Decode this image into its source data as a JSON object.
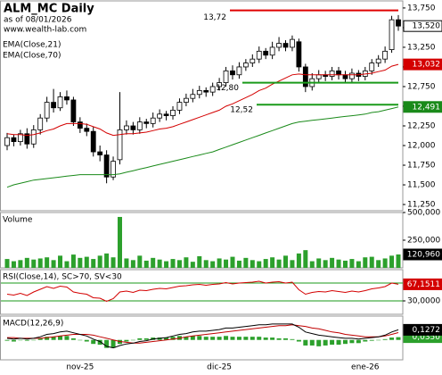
{
  "chart_data": {
    "type": "candlestick",
    "title": "ALM_MC Daily",
    "subtitle": "as of 08/01/2026",
    "source": "www.wealth-lab.com",
    "categories": [
      null,
      null,
      null,
      null,
      null,
      null,
      null,
      null,
      null,
      null,
      null,
      "nov-25",
      null,
      null,
      null,
      null,
      null,
      null,
      null,
      null,
      null,
      null,
      null,
      null,
      null,
      null,
      null,
      null,
      null,
      null,
      null,
      null,
      "dic-25",
      null,
      null,
      null,
      null,
      null,
      null,
      null,
      null,
      null,
      null,
      null,
      null,
      null,
      null,
      null,
      null,
      null,
      null,
      null,
      null,
      null,
      "ene-26",
      null,
      null,
      null,
      null,
      null
    ],
    "open": [
      12.0,
      12.1,
      12.05,
      12.15,
      12.02,
      12.2,
      12.35,
      12.55,
      12.48,
      12.62,
      12.58,
      12.3,
      12.22,
      12.18,
      11.92,
      11.88,
      11.6,
      11.82,
      12.2,
      12.25,
      12.2,
      12.3,
      12.28,
      12.35,
      12.4,
      12.38,
      12.45,
      12.55,
      12.6,
      12.65,
      12.7,
      12.68,
      12.75,
      12.8,
      12.95,
      12.9,
      13.0,
      13.05,
      13.1,
      13.2,
      13.15,
      13.25,
      13.3,
      13.25,
      13.32,
      13.0,
      12.75,
      12.85,
      12.9,
      12.88,
      12.95,
      12.9,
      12.85,
      12.92,
      12.88,
      12.95,
      13.05,
      13.1,
      13.22,
      13.6
    ],
    "high": [
      12.16,
      12.14,
      12.2,
      12.22,
      12.26,
      12.4,
      12.62,
      12.72,
      12.68,
      12.7,
      12.62,
      12.36,
      12.28,
      12.24,
      12.0,
      11.94,
      11.86,
      12.68,
      12.32,
      12.3,
      12.36,
      12.34,
      12.42,
      12.46,
      12.44,
      12.5,
      12.6,
      12.66,
      12.72,
      12.76,
      12.74,
      12.8,
      12.86,
      13.0,
      13.02,
      13.06,
      13.1,
      13.16,
      13.26,
      13.24,
      13.32,
      13.38,
      13.34,
      13.4,
      13.36,
      13.04,
      12.92,
      12.96,
      12.95,
      13.0,
      13.0,
      12.95,
      12.98,
      12.96,
      13.0,
      13.1,
      13.15,
      13.26,
      13.65,
      13.66
    ],
    "low": [
      11.94,
      11.99,
      12.0,
      11.96,
      11.97,
      12.14,
      12.3,
      12.42,
      12.44,
      12.52,
      12.25,
      12.16,
      12.12,
      11.86,
      11.8,
      11.52,
      11.56,
      11.76,
      12.14,
      12.14,
      12.15,
      12.22,
      12.23,
      12.3,
      12.32,
      12.33,
      12.4,
      12.5,
      12.55,
      12.6,
      12.62,
      12.63,
      12.7,
      12.75,
      12.84,
      12.85,
      12.95,
      13.0,
      13.05,
      13.1,
      13.1,
      13.2,
      13.2,
      13.2,
      12.94,
      12.68,
      12.7,
      12.8,
      12.82,
      12.83,
      12.84,
      12.8,
      12.8,
      12.82,
      12.83,
      12.9,
      13.0,
      13.05,
      13.18,
      13.46
    ],
    "close": [
      12.1,
      12.05,
      12.15,
      12.02,
      12.2,
      12.35,
      12.55,
      12.48,
      12.62,
      12.58,
      12.3,
      12.22,
      12.18,
      11.92,
      11.88,
      11.6,
      11.8,
      12.2,
      12.25,
      12.2,
      12.3,
      12.28,
      12.35,
      12.4,
      12.38,
      12.45,
      12.55,
      12.6,
      12.65,
      12.7,
      12.68,
      12.75,
      12.8,
      12.95,
      12.9,
      13.0,
      13.05,
      13.1,
      13.2,
      13.15,
      13.25,
      13.3,
      13.25,
      13.35,
      13.0,
      12.75,
      12.85,
      12.9,
      12.88,
      12.95,
      12.9,
      12.85,
      12.92,
      12.88,
      12.95,
      13.05,
      13.1,
      13.2,
      13.6,
      13.52
    ],
    "close_label": "13,520",
    "up_color": "#ffffff",
    "down_color": "#000000",
    "ylim": [
      11.171,
      13.84
    ],
    "yticks": [
      {
        "value": 13.75,
        "label": "13,750"
      },
      {
        "value": 13.5,
        "label": "13,500"
      },
      {
        "value": 13.25,
        "label": "13,250"
      },
      {
        "value": 13.0,
        "label": "13,000"
      },
      {
        "value": 12.75,
        "label": "12,750"
      },
      {
        "value": 12.5,
        "label": "12,500"
      },
      {
        "value": 12.25,
        "label": "12,250"
      },
      {
        "value": 12.0,
        "label": "12,000"
      },
      {
        "value": 11.75,
        "label": "11,750"
      },
      {
        "value": 11.5,
        "label": "11,500"
      },
      {
        "value": 11.25,
        "label": "11,250"
      }
    ],
    "series": [
      {
        "name": "EMA(Close,21)",
        "color": "#d40000",
        "last_label": "13,032",
        "values": [
          12.15,
          12.14,
          12.14,
          12.13,
          12.14,
          12.16,
          12.19,
          12.21,
          12.25,
          12.28,
          12.28,
          12.28,
          12.27,
          12.24,
          12.21,
          12.16,
          12.13,
          12.14,
          12.15,
          12.15,
          12.16,
          12.17,
          12.19,
          12.21,
          12.22,
          12.24,
          12.27,
          12.3,
          12.33,
          12.36,
          12.39,
          12.42,
          12.45,
          12.5,
          12.53,
          12.57,
          12.61,
          12.65,
          12.7,
          12.73,
          12.78,
          12.82,
          12.86,
          12.9,
          12.91,
          12.9,
          12.9,
          12.9,
          12.9,
          12.9,
          12.9,
          12.9,
          12.9,
          12.9,
          12.91,
          12.92,
          12.94,
          12.96,
          13.01,
          13.032
        ]
      },
      {
        "name": "EMA(Close,70)",
        "color": "#1a8a1a",
        "last_label": "12,491",
        "values": [
          11.47,
          11.5,
          11.52,
          11.54,
          11.56,
          11.57,
          11.58,
          11.59,
          11.6,
          11.61,
          11.62,
          11.63,
          11.63,
          11.63,
          11.63,
          11.63,
          11.63,
          11.64,
          11.66,
          11.68,
          11.7,
          11.72,
          11.74,
          11.76,
          11.78,
          11.8,
          11.82,
          11.84,
          11.86,
          11.88,
          11.9,
          11.92,
          11.95,
          11.98,
          12.01,
          12.04,
          12.07,
          12.1,
          12.13,
          12.16,
          12.19,
          12.22,
          12.25,
          12.28,
          12.3,
          12.31,
          12.32,
          12.33,
          12.34,
          12.35,
          12.36,
          12.37,
          12.38,
          12.39,
          12.4,
          12.42,
          12.43,
          12.45,
          12.47,
          12.491
        ]
      }
    ],
    "annotations": [
      {
        "label": "13,72",
        "value": 13.72,
        "color": "#e00000"
      },
      {
        "label": "12,80",
        "value": 12.8,
        "color": "#1a9a1a"
      },
      {
        "label": "12,52",
        "value": 12.52,
        "color": "#1a9a1a"
      }
    ],
    "panels": [
      {
        "type": "indicator",
        "title": "Volume",
        "ylim": [
          0,
          500
        ],
        "yticks": [
          {
            "value": 500,
            "label": "500,000"
          },
          {
            "value": 250,
            "label": "250,000"
          }
        ],
        "series": [
          {
            "type": "bar",
            "color": "#2ca02c",
            "last_label": "120,960",
            "label_color": "#000000",
            "values": [
              80,
              60,
              70,
              90,
              75,
              85,
              95,
              70,
              110,
              60,
              120,
              90,
              100,
              80,
              110,
              130,
              95,
              460,
              85,
              70,
              110,
              65,
              90,
              75,
              60,
              80,
              70,
              95,
              55,
              105,
              70,
              60,
              85,
              75,
              100,
              65,
              90,
              70,
              60,
              80,
              95,
              75,
              110,
              70,
              130,
              160,
              60,
              85,
              70,
              90,
              75,
              65,
              80,
              60,
              95,
              100,
              70,
              85,
              110,
              120.96
            ]
          }
        ]
      },
      {
        "type": "indicator",
        "title": "RSI(Close,14), SC>70, SV<30",
        "ylim": [
          0,
          100
        ],
        "yticks": [
          {
            "value": 30,
            "label": "30,0000"
          }
        ],
        "levels": [
          70,
          30
        ],
        "level_color": "#1a9a1a",
        "series": [
          {
            "type": "line",
            "color": "#d40000",
            "last_label": "67,1511",
            "values": [
              45,
              43,
              47,
              42,
              50,
              56,
              62,
              58,
              63,
              61,
              50,
              47,
              45,
              37,
              36,
              29,
              35,
              50,
              52,
              49,
              54,
              53,
              56,
              58,
              57,
              60,
              63,
              64,
              66,
              67,
              65,
              67,
              68,
              71,
              68,
              70,
              71,
              72,
              74,
              70,
              72,
              73,
              70,
              72,
              55,
              45,
              49,
              51,
              50,
              53,
              51,
              49,
              52,
              50,
              53,
              57,
              59,
              62,
              70,
              67.1511
            ]
          }
        ]
      },
      {
        "type": "indicator",
        "title": "MACD(12,26,9)",
        "ylim": [
          -0.25,
          0.3
        ],
        "series": [
          {
            "type": "bar",
            "color": "#2ca02c",
            "last_label": "0,0350",
            "values": [
              -0.01,
              -0.02,
              0.0,
              -0.01,
              0.0,
              0.02,
              0.04,
              0.04,
              0.05,
              0.05,
              0.02,
              0.0,
              -0.02,
              -0.05,
              -0.06,
              -0.1,
              -0.1,
              -0.05,
              -0.02,
              0.0,
              0.02,
              0.02,
              0.03,
              0.03,
              0.03,
              0.04,
              0.05,
              0.04,
              0.05,
              0.05,
              0.04,
              0.04,
              0.04,
              0.05,
              0.04,
              0.04,
              0.04,
              0.04,
              0.04,
              0.03,
              0.03,
              0.02,
              0.02,
              0.01,
              -0.02,
              -0.07,
              -0.07,
              -0.08,
              -0.07,
              -0.06,
              -0.06,
              -0.05,
              -0.04,
              -0.04,
              -0.02,
              -0.01,
              0.0,
              0.01,
              0.03,
              0.035
            ]
          },
          {
            "type": "line",
            "color": "#c00000",
            "values": [
              0.03,
              0.03,
              0.02,
              0.02,
              0.02,
              0.02,
              0.03,
              0.04,
              0.05,
              0.06,
              0.07,
              0.07,
              0.07,
              0.06,
              0.04,
              0.02,
              0.0,
              -0.02,
              -0.03,
              -0.04,
              -0.04,
              -0.03,
              -0.02,
              -0.01,
              0.0,
              0.01,
              0.02,
              0.04,
              0.05,
              0.06,
              0.07,
              0.08,
              0.09,
              0.1,
              0.11,
              0.12,
              0.13,
              0.14,
              0.15,
              0.16,
              0.17,
              0.18,
              0.18,
              0.19,
              0.18,
              0.17,
              0.15,
              0.14,
              0.12,
              0.1,
              0.09,
              0.07,
              0.06,
              0.05,
              0.04,
              0.04,
              0.04,
              0.05,
              0.07,
              0.0922
            ]
          },
          {
            "type": "line",
            "color": "#000000",
            "last_label": "0,1272",
            "values": [
              0.02,
              0.01,
              0.02,
              0.01,
              0.02,
              0.04,
              0.07,
              0.08,
              0.1,
              0.11,
              0.09,
              0.07,
              0.05,
              0.01,
              -0.02,
              -0.08,
              -0.1,
              -0.07,
              -0.05,
              -0.04,
              -0.02,
              -0.01,
              0.01,
              0.02,
              0.03,
              0.05,
              0.07,
              0.08,
              0.1,
              0.11,
              0.11,
              0.12,
              0.13,
              0.15,
              0.15,
              0.16,
              0.17,
              0.18,
              0.19,
              0.19,
              0.2,
              0.2,
              0.2,
              0.2,
              0.16,
              0.1,
              0.08,
              0.06,
              0.05,
              0.04,
              0.03,
              0.02,
              0.02,
              0.01,
              0.02,
              0.03,
              0.04,
              0.06,
              0.1,
              0.1272
            ]
          }
        ]
      }
    ]
  }
}
